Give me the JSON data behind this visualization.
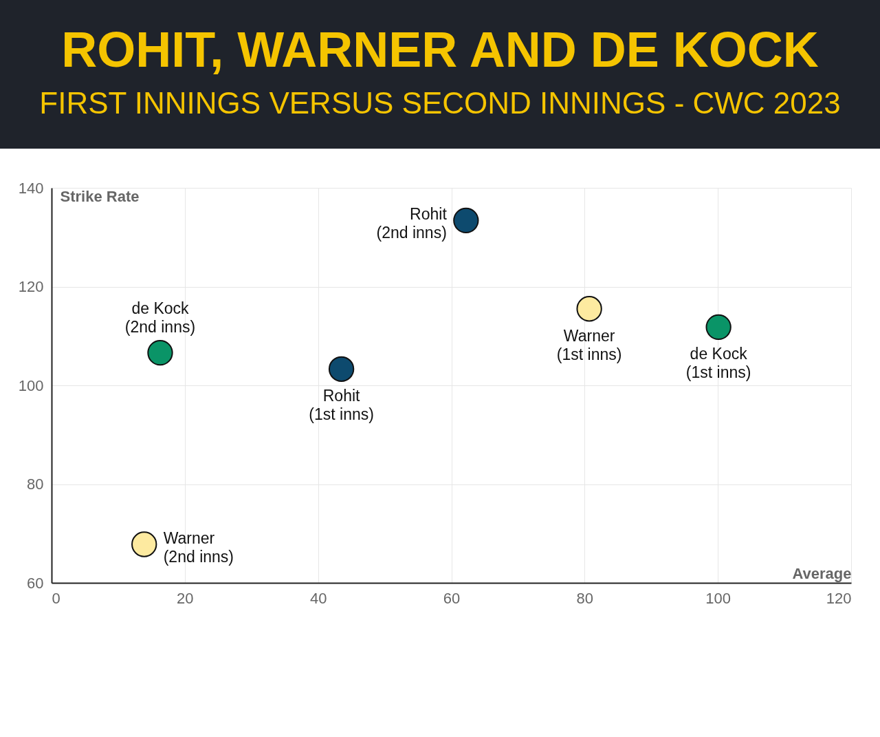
{
  "chart_data": {
    "type": "scatter",
    "title": "ROHIT, WARNER AND DE KOCK",
    "subtitle": "FIRST INNINGS VERSUS SECOND INNINGS - CWC 2023",
    "xlabel": "Average",
    "ylabel": "Strike Rate",
    "xlim": [
      0,
      120
    ],
    "xticks": [
      0,
      20,
      40,
      60,
      80,
      100,
      120
    ],
    "ylim": [
      60,
      140
    ],
    "yticks": [
      60,
      80,
      100,
      120,
      140
    ],
    "grid": true,
    "marker": "circle",
    "series": [
      {
        "name": "Rohit (2nd inns)",
        "color": "#0d4a6e",
        "x": [
          62.2
        ],
        "values": [
          133.4
        ]
      },
      {
        "name": "Warner (1st inns)",
        "color": "#fdeaa0",
        "x": [
          80.7
        ],
        "values": [
          115.5
        ]
      },
      {
        "name": "de Kock (1st inns)",
        "color": "#0a9467",
        "x": [
          100.1
        ],
        "values": [
          111.8
        ]
      },
      {
        "name": "de Kock (2nd inns)",
        "color": "#0a9467",
        "x": [
          16.3
        ],
        "values": [
          106.6
        ]
      },
      {
        "name": "Rohit (1st inns)",
        "color": "#0d4a6e",
        "x": [
          43.5
        ],
        "values": [
          103.3
        ]
      },
      {
        "name": "Warner (2nd inns)",
        "color": "#fdeaa0",
        "x": [
          13.9
        ],
        "values": [
          67.8
        ]
      }
    ]
  }
}
